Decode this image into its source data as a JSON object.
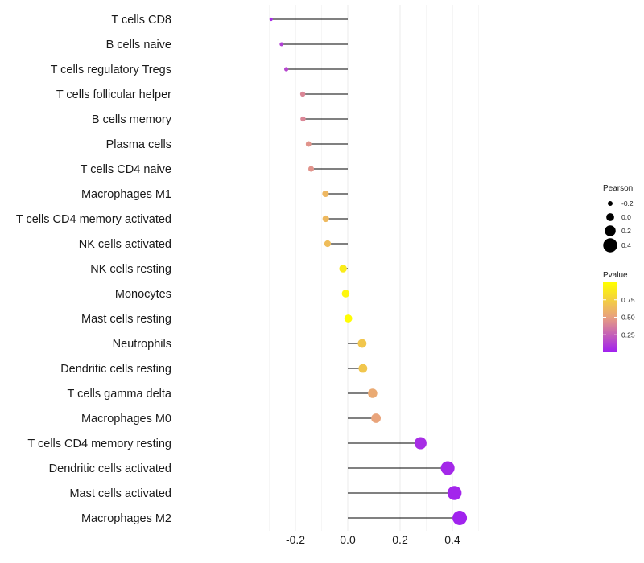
{
  "chart_data": {
    "type": "lollipop",
    "categories": [
      "T cells CD8",
      "B cells naive",
      "T cells regulatory  Tregs",
      "T cells follicular helper",
      "B cells memory",
      "Plasma cells",
      "T cells CD4 naive",
      "Macrophages M1",
      "T cells CD4 memory activated",
      "NK cells activated",
      "NK cells resting",
      "Monocytes",
      "Mast cells resting",
      "Neutrophils",
      "Dendritic cells resting",
      "T cells gamma delta",
      "Macrophages M0",
      "T cells CD4 memory resting",
      "Dendritic cells activated",
      "Mast cells activated",
      "Macrophages M2"
    ],
    "pearson": [
      -0.293,
      -0.253,
      -0.235,
      -0.172,
      -0.171,
      -0.15,
      -0.14,
      -0.085,
      -0.084,
      -0.077,
      -0.018,
      -0.008,
      0.002,
      0.055,
      0.058,
      0.095,
      0.108,
      0.278,
      0.382,
      0.408,
      0.428
    ],
    "pvalue": [
      0.05,
      0.12,
      0.15,
      0.4,
      0.4,
      0.45,
      0.45,
      0.62,
      0.63,
      0.65,
      0.9,
      0.95,
      0.99,
      0.7,
      0.7,
      0.55,
      0.52,
      0.05,
      0.03,
      0.02,
      0.01
    ],
    "xlim": [
      -0.3,
      0.5
    ],
    "xticks": [
      -0.2,
      0.0,
      0.2,
      0.4
    ],
    "xtick_labels": [
      "-0.2",
      "0.0",
      "0.2",
      "0.4"
    ],
    "legend_size": {
      "title": "Pearson",
      "values": [
        -0.2,
        0.0,
        0.2,
        0.4
      ],
      "labels": [
        "-0.2",
        "0.0",
        "0.2",
        "0.4"
      ]
    },
    "legend_color": {
      "title": "Pvalue",
      "ticks": [
        0.25,
        0.5,
        0.75
      ],
      "labels": [
        "0.25",
        "0.50",
        "0.75"
      ],
      "range": [
        0.0,
        1.0
      ],
      "low_color": "#a020f0",
      "mid_color": "#e8a080",
      "high_color": "#ffff00"
    },
    "grid": true,
    "legend_position": "right"
  }
}
